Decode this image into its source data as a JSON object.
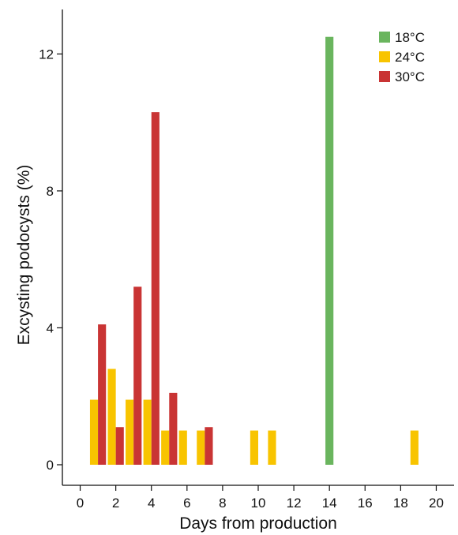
{
  "chart_data": {
    "type": "bar",
    "title": "",
    "xlabel": "Days from production",
    "ylabel": "Excysting podocysts (%)",
    "xlim": [
      -1,
      21
    ],
    "ylim": [
      -0.6,
      13.3
    ],
    "xticks": [
      0,
      2,
      4,
      6,
      8,
      10,
      12,
      14,
      16,
      18,
      20
    ],
    "xtick_labels": [
      "0",
      "2",
      "4",
      "6",
      "8",
      "10",
      "12",
      "14",
      "16",
      "18",
      "20"
    ],
    "yticks": [
      0,
      4,
      8,
      12
    ],
    "ytick_labels": [
      "0",
      "4",
      "8",
      "12"
    ],
    "grid": false,
    "legend_position": "top-right",
    "series": [
      {
        "name": "18°C",
        "color": "#6ab55e",
        "points": [
          {
            "x": 14,
            "y": 12.5
          }
        ]
      },
      {
        "name": "24°C",
        "color": "#f8c400",
        "points": [
          {
            "x": 1,
            "y": 1.9
          },
          {
            "x": 2,
            "y": 2.8
          },
          {
            "x": 3,
            "y": 1.9
          },
          {
            "x": 4,
            "y": 1.9
          },
          {
            "x": 5,
            "y": 1.0
          },
          {
            "x": 6,
            "y": 1.0
          },
          {
            "x": 7,
            "y": 1.0
          },
          {
            "x": 10,
            "y": 1.0
          },
          {
            "x": 11,
            "y": 1.0
          },
          {
            "x": 19,
            "y": 1.0
          }
        ]
      },
      {
        "name": "30°C",
        "color": "#c93434",
        "points": [
          {
            "x": 1,
            "y": 4.1
          },
          {
            "x": 2,
            "y": 1.1
          },
          {
            "x": 3,
            "y": 5.2
          },
          {
            "x": 4,
            "y": 10.3
          },
          {
            "x": 5,
            "y": 2.1
          },
          {
            "x": 7,
            "y": 1.1
          }
        ]
      }
    ]
  }
}
